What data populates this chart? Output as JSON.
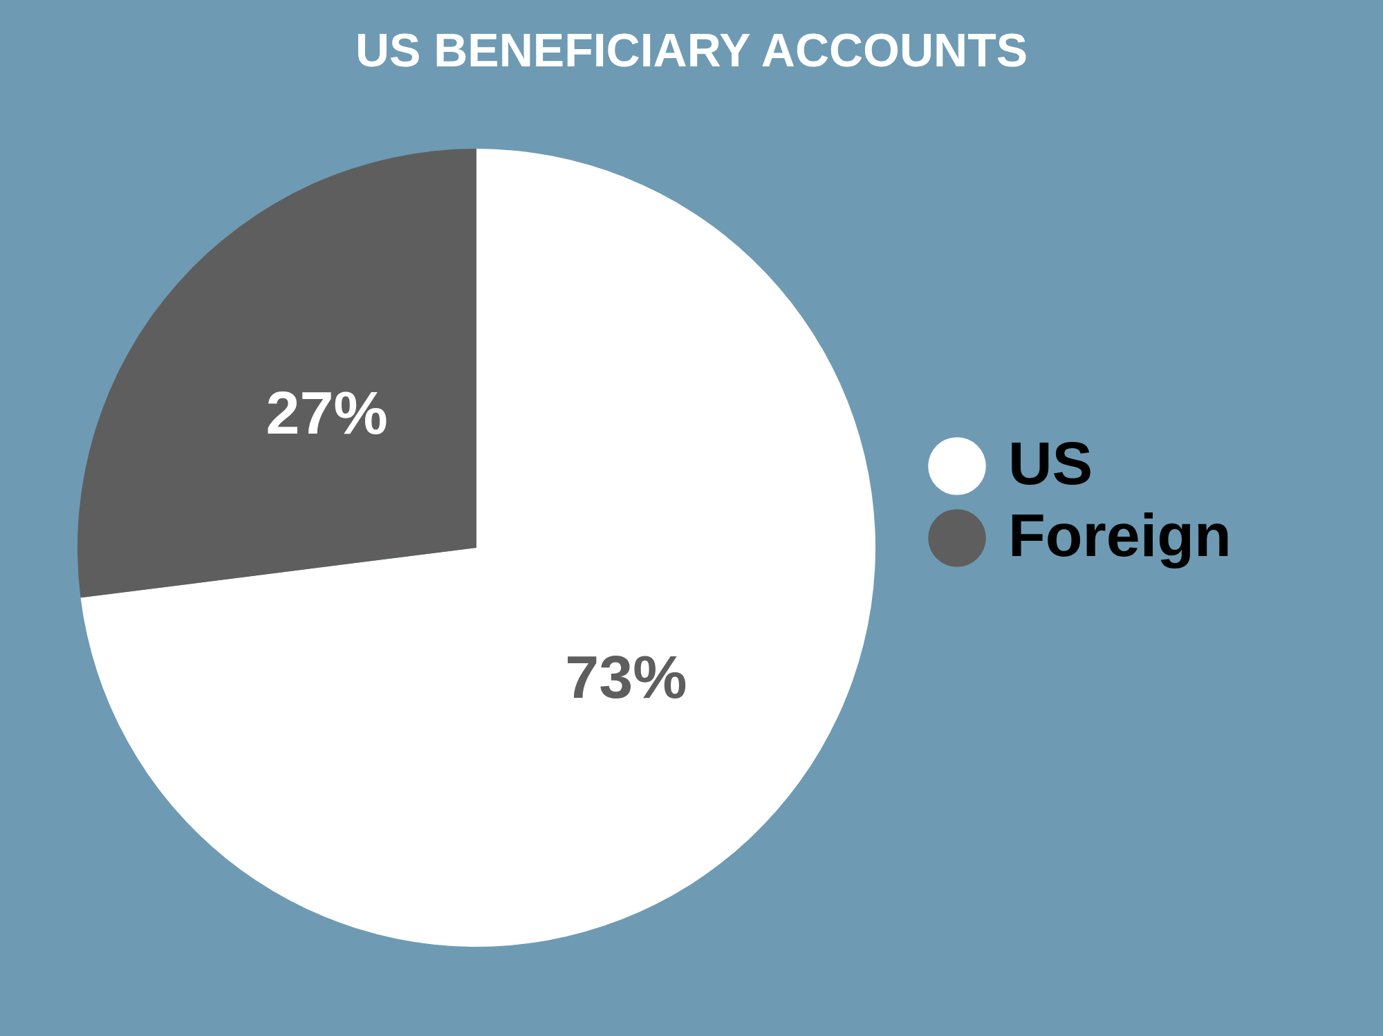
{
  "chart_data": {
    "type": "pie",
    "title": "US BENEFICIARY ACCOUNTS",
    "categories": [
      "US",
      "Foreign"
    ],
    "values": [
      73,
      27
    ],
    "colors": [
      "#ffffff",
      "#5e5e5e"
    ],
    "value_labels": [
      "73%",
      "27%"
    ],
    "legend": "right"
  }
}
